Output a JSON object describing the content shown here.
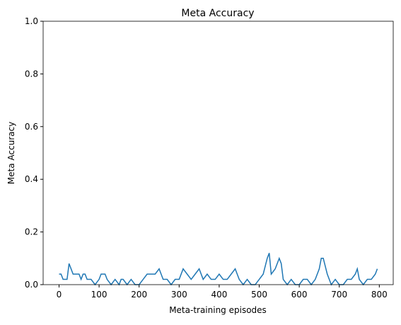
{
  "chart_data": {
    "type": "line",
    "title": "Meta Accuracy",
    "x_label": "Meta-training episodes",
    "y_label": "Meta Accuracy",
    "x": [
      0,
      5,
      10,
      15,
      20,
      25,
      30,
      35,
      40,
      50,
      55,
      60,
      65,
      70,
      80,
      90,
      100,
      105,
      115,
      120,
      130,
      140,
      150,
      155,
      160,
      170,
      180,
      190,
      200,
      210,
      220,
      230,
      240,
      250,
      255,
      260,
      270,
      280,
      290,
      300,
      310,
      320,
      330,
      340,
      350,
      360,
      370,
      380,
      390,
      400,
      410,
      420,
      430,
      440,
      450,
      460,
      470,
      480,
      490,
      500,
      510,
      520,
      525,
      530,
      540,
      550,
      555,
      560,
      570,
      580,
      590,
      600,
      610,
      620,
      630,
      640,
      650,
      655,
      660,
      670,
      680,
      690,
      700,
      710,
      720,
      730,
      740,
      745,
      750,
      760,
      770,
      780,
      790,
      795
    ],
    "series": [
      {
        "name": "Meta Accuracy",
        "color": "#1f77b4",
        "values": [
          0.04,
          0.04,
          0.02,
          0.02,
          0.02,
          0.08,
          0.06,
          0.04,
          0.04,
          0.04,
          0.02,
          0.04,
          0.04,
          0.02,
          0.02,
          0,
          0.02,
          0.04,
          0.04,
          0.02,
          0,
          0.02,
          0,
          0.02,
          0.02,
          0,
          0.02,
          0,
          0,
          0.02,
          0.04,
          0.04,
          0.04,
          0.06,
          0.04,
          0.02,
          0.02,
          0,
          0.02,
          0.02,
          0.06,
          0.04,
          0.02,
          0.04,
          0.06,
          0.02,
          0.04,
          0.02,
          0.02,
          0.04,
          0.02,
          0.02,
          0.04,
          0.06,
          0.02,
          0,
          0.02,
          0,
          0,
          0.02,
          0.04,
          0.1,
          0.12,
          0.04,
          0.06,
          0.1,
          0.08,
          0.02,
          0,
          0.02,
          0,
          0,
          0.02,
          0.02,
          0,
          0.02,
          0.06,
          0.1,
          0.1,
          0.04,
          0,
          0.02,
          0,
          0,
          0.02,
          0.02,
          0.04,
          0.06,
          0.02,
          0,
          0.02,
          0.02,
          0.04,
          0.06
        ]
      }
    ],
    "xlim": [
      -39.75,
      834.75
    ],
    "xticks": [
      0,
      100,
      200,
      300,
      400,
      500,
      600,
      700,
      800
    ],
    "ylim": [
      0,
      1
    ],
    "yticks": [
      {
        "value": 0,
        "label": "0.0"
      },
      {
        "value": 0.2,
        "label": "0.2"
      },
      {
        "value": 0.4,
        "label": "0.4"
      },
      {
        "value": 0.6,
        "label": "0.6"
      },
      {
        "value": 0.8,
        "label": "0.8"
      },
      {
        "value": 1,
        "label": "1.0"
      }
    ],
    "grid": false
  }
}
